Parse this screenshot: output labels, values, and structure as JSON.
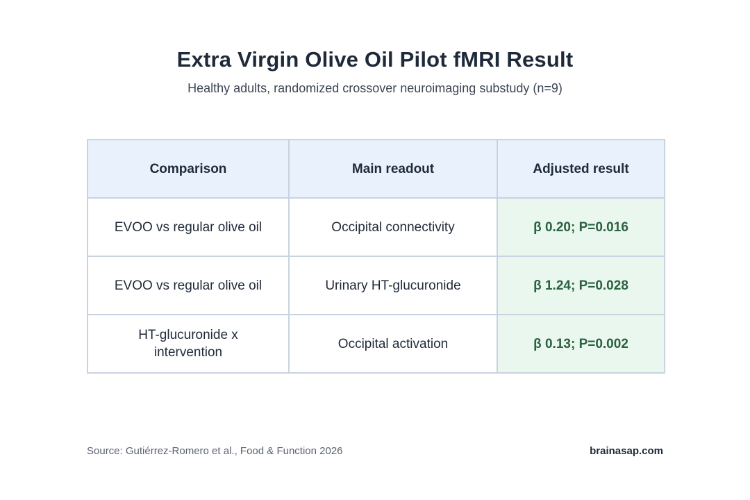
{
  "header": {
    "title": "Extra Virgin Olive Oil Pilot fMRI Result",
    "subtitle": "Healthy adults, randomized crossover neuroimaging substudy (n=9)"
  },
  "table": {
    "columns": [
      "Comparison",
      "Main readout",
      "Adjusted result"
    ],
    "rows": [
      {
        "comparison": "EVOO vs regular olive oil",
        "readout": "Occipital connectivity",
        "result": "β 0.20; P=0.016"
      },
      {
        "comparison": "EVOO vs regular olive oil",
        "readout": "Urinary HT-glucuronide",
        "result": "β 1.24; P=0.028"
      },
      {
        "comparison": "HT-glucuronide x intervention",
        "readout": "Occipital activation",
        "result": "β 0.13; P=0.002"
      }
    ]
  },
  "footer": {
    "source": "Source: Gutiérrez-Romero et al., Food & Function 2026",
    "brand": "brainasap.com"
  },
  "colors": {
    "header_bg": "#e9f2fc",
    "result_bg": "#eaf7ee",
    "result_text": "#2a6140",
    "border": "#c9d3e0"
  }
}
